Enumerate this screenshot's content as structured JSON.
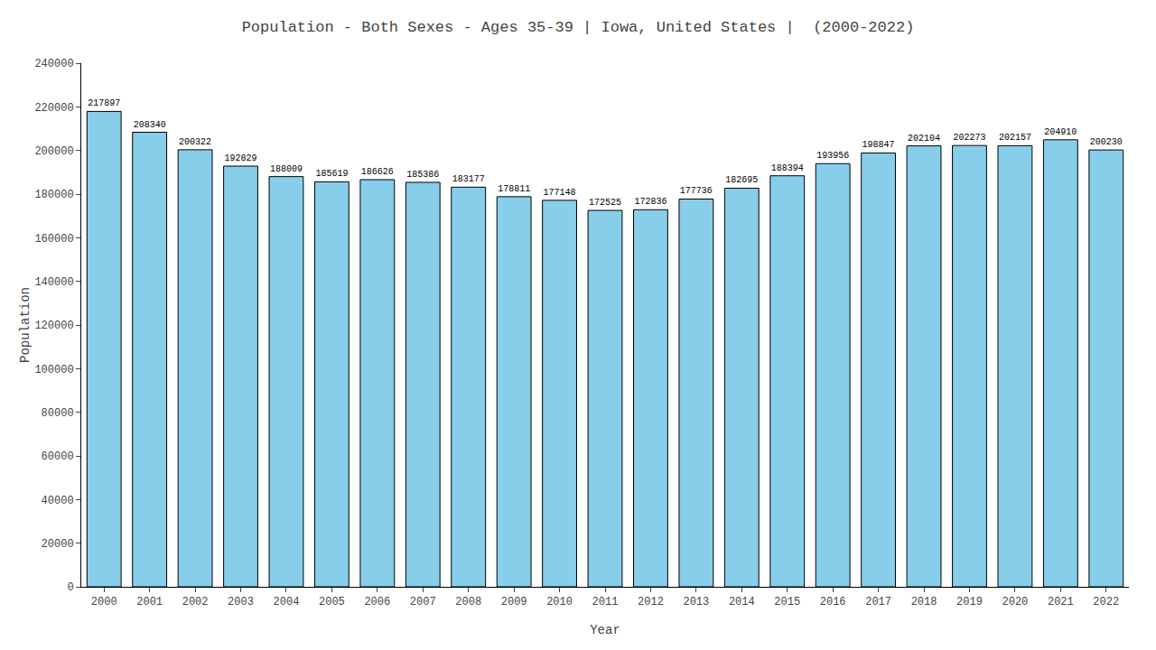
{
  "chart_data": {
    "type": "bar",
    "title": "Population - Both Sexes - Ages 35-39 | Iowa, United States |  (2000-2022)",
    "xlabel": "Year",
    "ylabel": "Population",
    "categories": [
      "2000",
      "2001",
      "2002",
      "2003",
      "2004",
      "2005",
      "2006",
      "2007",
      "2008",
      "2009",
      "2010",
      "2011",
      "2012",
      "2013",
      "2014",
      "2015",
      "2016",
      "2017",
      "2018",
      "2019",
      "2020",
      "2021",
      "2022"
    ],
    "values": [
      217897,
      208340,
      200322,
      192829,
      188009,
      185619,
      186626,
      185386,
      183177,
      178811,
      177148,
      172525,
      172836,
      177736,
      182695,
      188394,
      193956,
      198847,
      202104,
      202273,
      202157,
      204910,
      200230
    ],
    "color": "#87ceeb",
    "ylim": [
      0,
      240000
    ],
    "yticks": [
      0,
      20000,
      40000,
      60000,
      80000,
      100000,
      120000,
      140000,
      160000,
      180000,
      200000,
      220000,
      240000
    ],
    "grid": false,
    "data_labels": true
  }
}
